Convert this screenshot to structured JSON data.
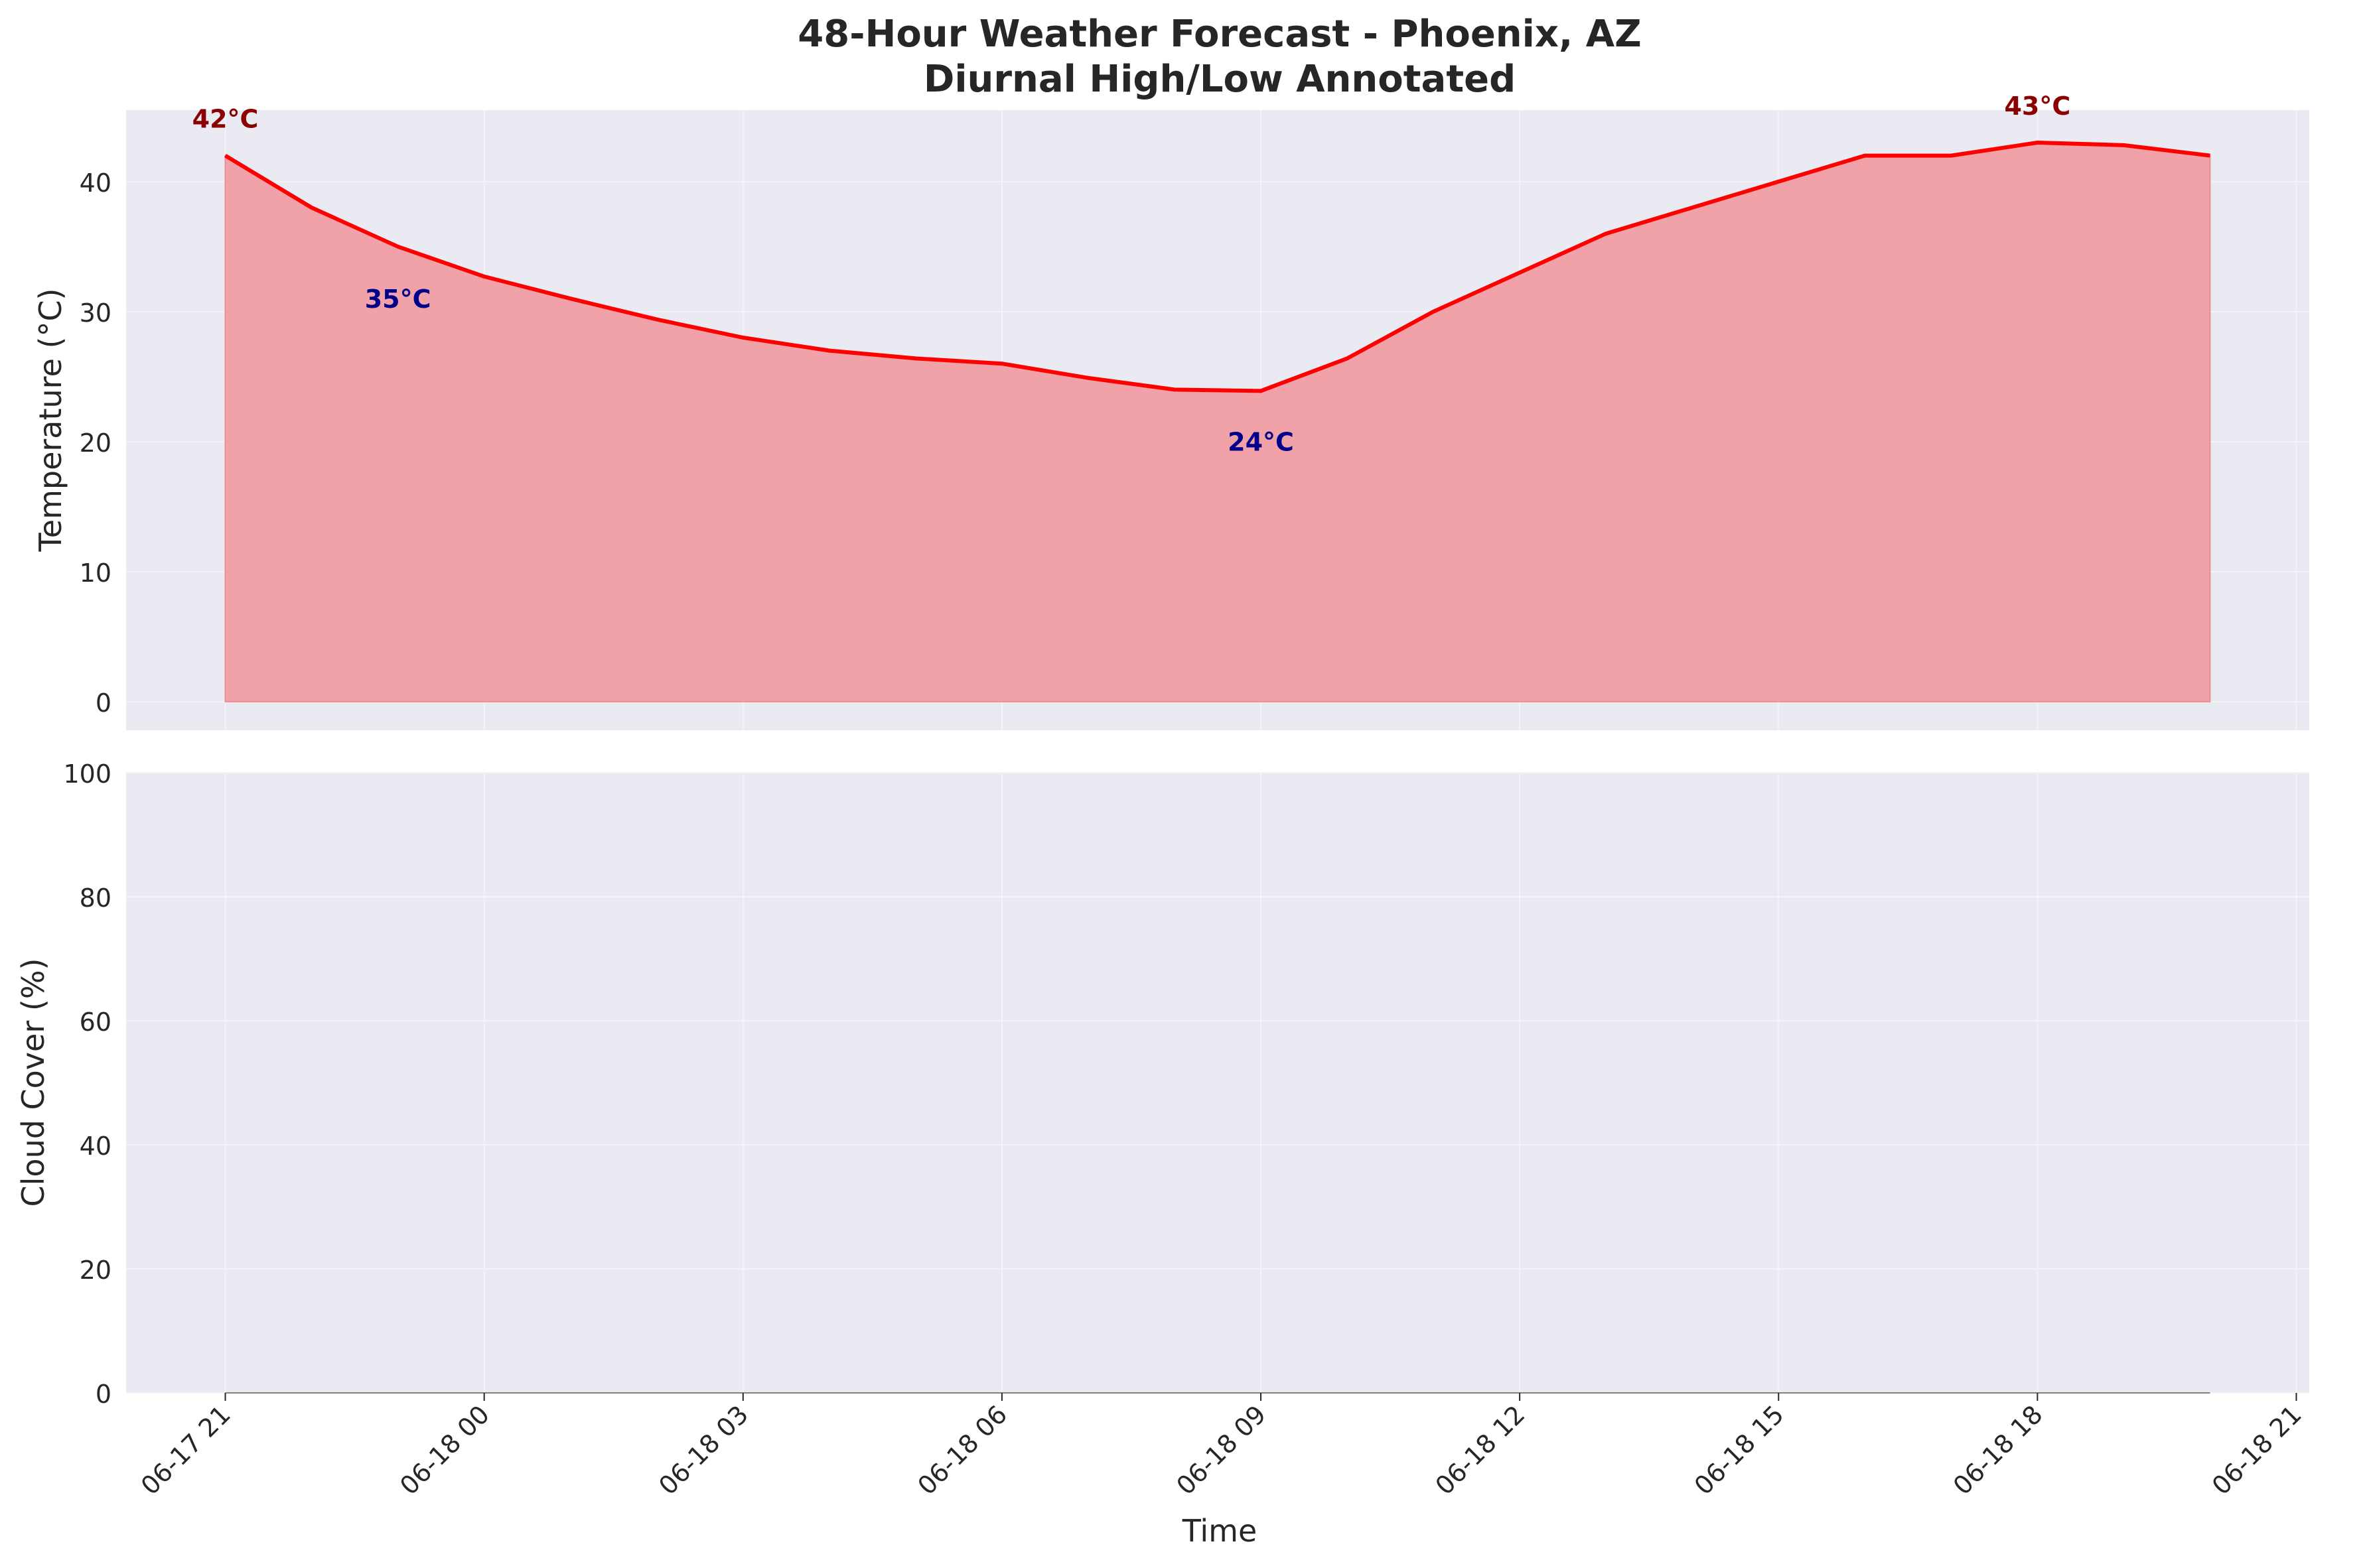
{
  "title": "48-Hour Weather Forecast - Phoenix, AZ",
  "subtitle": "Diurnal High/Low Annotated",
  "xlabel": "Time",
  "x_ticks": [
    "06-17 21",
    "06-18 00",
    "06-18 03",
    "06-18 06",
    "06-18 09",
    "06-18 12",
    "06-18 15",
    "06-18 18",
    "06-18 21"
  ],
  "chart_data": [
    {
      "type": "area",
      "ylabel": "Temperature (°C)",
      "ylim": [
        -2.2,
        45.5
      ],
      "yticks": [
        0,
        10,
        20,
        30,
        40
      ],
      "grid": true,
      "x": [
        "2024-06-17 21:00",
        "2024-06-17 22:00",
        "2024-06-17 23:00",
        "2024-06-18 00:00",
        "2024-06-18 01:00",
        "2024-06-18 02:00",
        "2024-06-18 03:00",
        "2024-06-18 04:00",
        "2024-06-18 05:00",
        "2024-06-18 06:00",
        "2024-06-18 07:00",
        "2024-06-18 08:00",
        "2024-06-18 09:00",
        "2024-06-18 10:00",
        "2024-06-18 11:00",
        "2024-06-18 12:00",
        "2024-06-18 13:00",
        "2024-06-18 14:00",
        "2024-06-18 15:00",
        "2024-06-18 16:00",
        "2024-06-18 17:00",
        "2024-06-18 18:00",
        "2024-06-18 19:00",
        "2024-06-18 20:00"
      ],
      "values": [
        42,
        38,
        35,
        32.7,
        31,
        29.4,
        28,
        27,
        26.4,
        26,
        24.9,
        24,
        23.9,
        26.4,
        30,
        33,
        36,
        38,
        40,
        42,
        42,
        43,
        42.8,
        42
      ],
      "line_color": "#ff0000",
      "fill_color": "#f0a2a8",
      "annotations": [
        {
          "label": "42°C",
          "x": "2024-06-17 21:00",
          "y": 42,
          "kind": "high",
          "color": "#8b0000"
        },
        {
          "label": "35°C",
          "x": "2024-06-17 23:00",
          "y": 35,
          "kind": "low",
          "color": "#00008b"
        },
        {
          "label": "24°C",
          "x": "2024-06-18 09:00",
          "y": 24,
          "kind": "low",
          "color": "#00008b"
        },
        {
          "label": "43°C",
          "x": "2024-06-18 18:00",
          "y": 43,
          "kind": "high",
          "color": "#8b0000"
        }
      ]
    },
    {
      "type": "area",
      "ylabel": "Cloud Cover (%)",
      "ylim": [
        0,
        100
      ],
      "yticks": [
        0,
        20,
        40,
        60,
        80,
        100
      ],
      "grid": true,
      "x": [
        "2024-06-17 21:00",
        "2024-06-17 22:00",
        "2024-06-17 23:00",
        "2024-06-18 00:00",
        "2024-06-18 01:00",
        "2024-06-18 02:00",
        "2024-06-18 03:00",
        "2024-06-18 04:00",
        "2024-06-18 05:00",
        "2024-06-18 06:00",
        "2024-06-18 07:00",
        "2024-06-18 08:00",
        "2024-06-18 09:00",
        "2024-06-18 10:00",
        "2024-06-18 11:00",
        "2024-06-18 12:00",
        "2024-06-18 13:00",
        "2024-06-18 14:00",
        "2024-06-18 15:00",
        "2024-06-18 16:00",
        "2024-06-18 17:00",
        "2024-06-18 18:00",
        "2024-06-18 19:00",
        "2024-06-18 20:00"
      ],
      "values": [
        0,
        0,
        0,
        0,
        0,
        0,
        0,
        0,
        0,
        0,
        0,
        0,
        0,
        0,
        0,
        0,
        0,
        0,
        0,
        0,
        0,
        0,
        0,
        0
      ],
      "line_color": "#808080"
    }
  ]
}
